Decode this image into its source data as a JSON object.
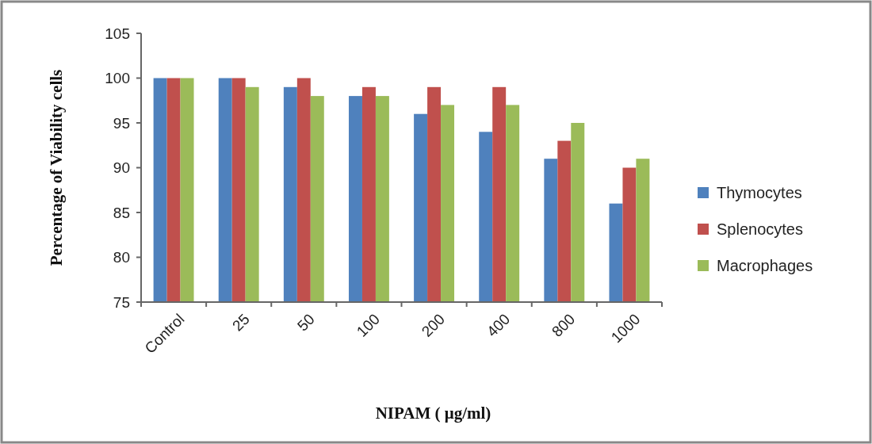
{
  "chart_data": {
    "type": "bar",
    "xlabel": "NIPAM ( μg/ml)",
    "ylabel": "Percentage of Viability cells",
    "categories": [
      "Control",
      "25",
      "50",
      "100",
      "200",
      "400",
      "800",
      "1000"
    ],
    "series": [
      {
        "name": "Thymocytes",
        "color": "#4f81bd",
        "values": [
          100,
          100,
          99,
          98,
          96,
          94,
          91,
          86
        ]
      },
      {
        "name": "Splenocytes",
        "color": "#c0504d",
        "values": [
          100,
          100,
          100,
          99,
          99,
          99,
          93,
          90
        ]
      },
      {
        "name": "Macrophages",
        "color": "#9bbb59",
        "values": [
          100,
          99,
          98,
          98,
          97,
          97,
          95,
          91
        ]
      }
    ],
    "ylim": [
      75,
      105
    ],
    "yticks": [
      75,
      80,
      85,
      90,
      95,
      100,
      105
    ],
    "grid": false,
    "legend": "right"
  }
}
